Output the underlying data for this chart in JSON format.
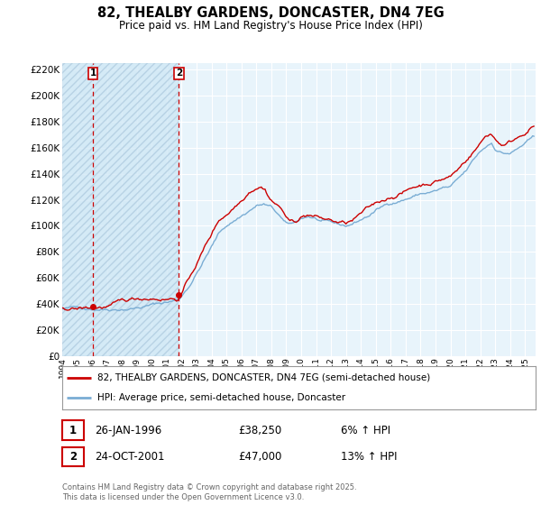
{
  "title": "82, THEALBY GARDENS, DONCASTER, DN4 7EG",
  "subtitle": "Price paid vs. HM Land Registry's House Price Index (HPI)",
  "legend_line1": "82, THEALBY GARDENS, DONCASTER, DN4 7EG (semi-detached house)",
  "legend_line2": "HPI: Average price, semi-detached house, Doncaster",
  "footer": "Contains HM Land Registry data © Crown copyright and database right 2025.\nThis data is licensed under the Open Government Licence v3.0.",
  "annotation1": {
    "num": "1",
    "date": "26-JAN-1996",
    "price": "£38,250",
    "hpi": "6% ↑ HPI"
  },
  "annotation2": {
    "num": "2",
    "date": "24-OCT-2001",
    "price": "£47,000",
    "hpi": "13% ↑ HPI"
  },
  "price_color": "#cc0000",
  "hpi_color": "#7aadd4",
  "hatch_color": "#d8eaf5",
  "background_color": "#ffffff",
  "plot_bg_color": "#e8f4fb",
  "grid_color": "#ffffff",
  "vline_color": "#cc0000",
  "ylim": [
    0,
    225000
  ],
  "yticks": [
    0,
    20000,
    40000,
    60000,
    80000,
    100000,
    120000,
    140000,
    160000,
    180000,
    200000,
    220000
  ],
  "xlim_start": 1994.0,
  "xlim_end": 2025.7,
  "marker1_x": 1996.07,
  "marker1_y": 38250,
  "marker2_x": 2001.81,
  "marker2_y": 47000,
  "hatch_end": 2001.81,
  "seed": 42
}
